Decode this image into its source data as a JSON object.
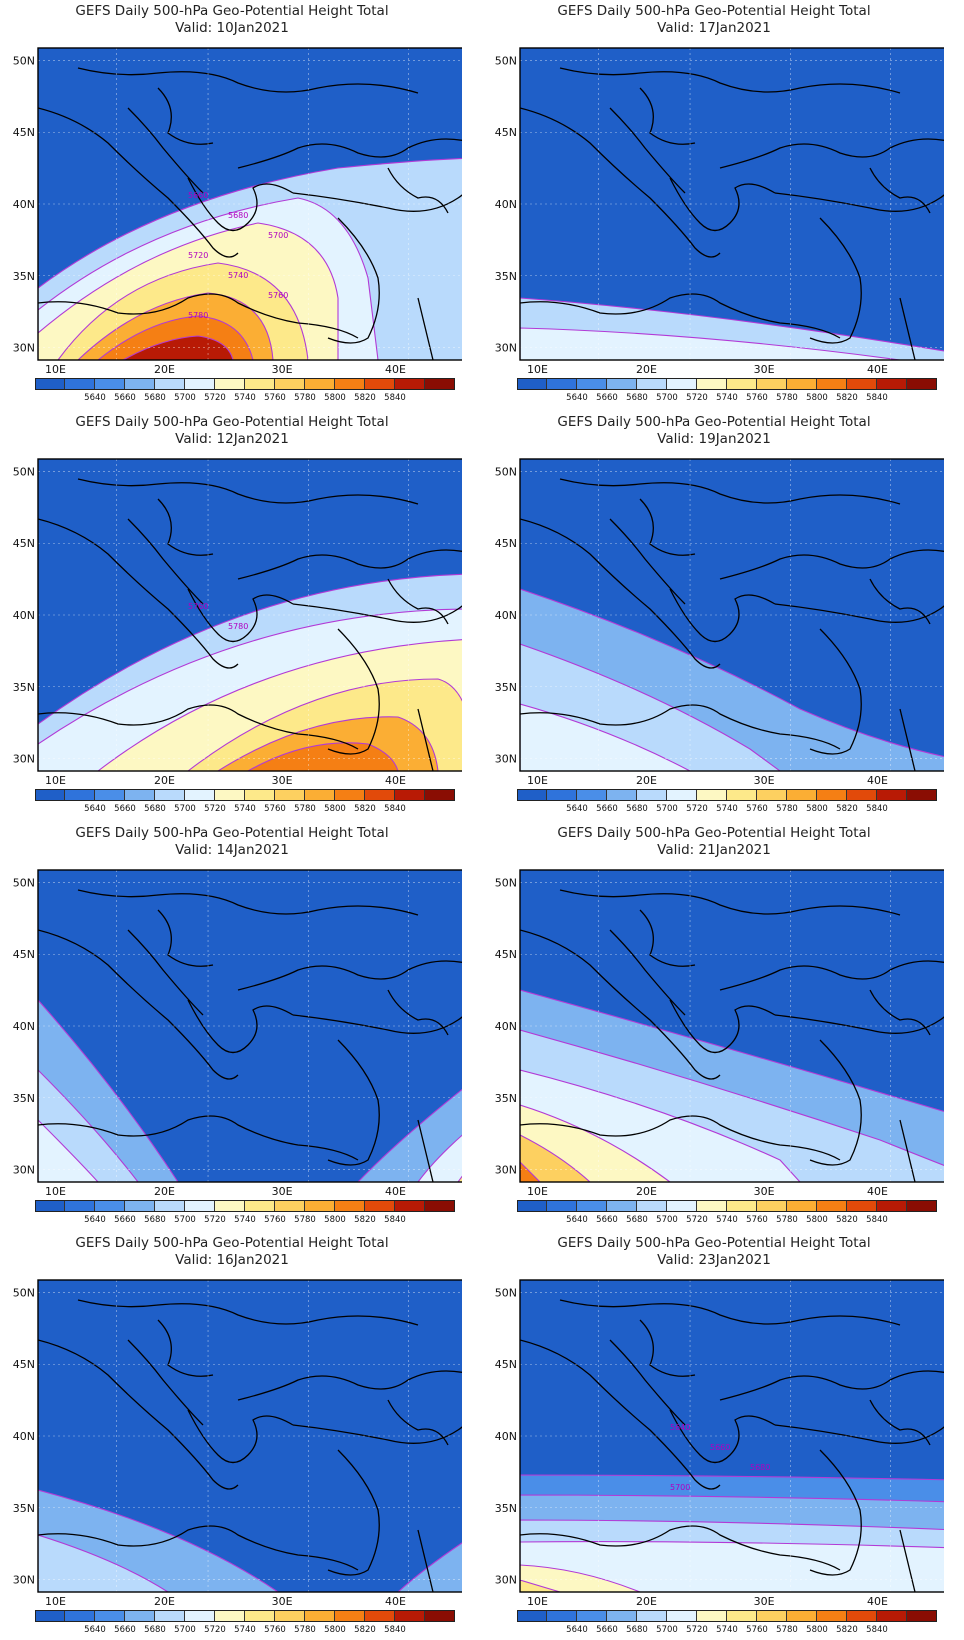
{
  "colors": {
    "ocean": "#2e6fd6",
    "contour": "#b23ad6",
    "coast": "#000000",
    "scale": [
      "#1f5fc8",
      "#2f73db",
      "#4a8ee8",
      "#7db3f0",
      "#b9dafc",
      "#e3f3ff",
      "#fdf8c3",
      "#fde98a",
      "#fdd060",
      "#fbae34",
      "#f57f14",
      "#e24a0a",
      "#b81a05",
      "#8a0d03"
    ]
  },
  "colorbar_labels": [
    "5640",
    "5660",
    "5680",
    "5700",
    "5720",
    "5740",
    "5760",
    "5780",
    "5800",
    "5820",
    "5840"
  ],
  "lat_labels": [
    "50N",
    "45N",
    "40N",
    "35N",
    "30N"
  ],
  "lon_labels": [
    "10E",
    "20E",
    "30E",
    "40E"
  ],
  "panels": [
    {
      "title": "GEFS Daily 500-hPa Geo-Potential Height Total",
      "valid": "Valid: 10Jan2021",
      "contour_labels": [
        "5660",
        "5680",
        "5700",
        "5720",
        "5740",
        "5760",
        "5780"
      ]
    },
    {
      "title": "GEFS Daily 500-hPa Geo-Potential Height Total",
      "valid": "Valid: 17Jan2021",
      "contour_labels": []
    },
    {
      "title": "GEFS Daily 500-hPa Geo-Potential Height Total",
      "valid": "Valid: 12Jan2021",
      "contour_labels": [
        "5760",
        "5780"
      ]
    },
    {
      "title": "GEFS Daily 500-hPa Geo-Potential Height Total",
      "valid": "Valid: 19Jan2021",
      "contour_labels": []
    },
    {
      "title": "GEFS Daily 500-hPa Geo-Potential Height Total",
      "valid": "Valid: 14Jan2021",
      "contour_labels": []
    },
    {
      "title": "GEFS Daily 500-hPa Geo-Potential Height Total",
      "valid": "Valid: 21Jan2021",
      "contour_labels": []
    },
    {
      "title": "GEFS Daily 500-hPa Geo-Potential Height Total",
      "valid": "Valid: 16Jan2021",
      "contour_labels": []
    },
    {
      "title": "GEFS Daily 500-hPa Geo-Potential Height Total",
      "valid": "Valid: 23Jan2021",
      "contour_labels": [
        "5640",
        "5660",
        "5680",
        "5700"
      ]
    }
  ]
}
